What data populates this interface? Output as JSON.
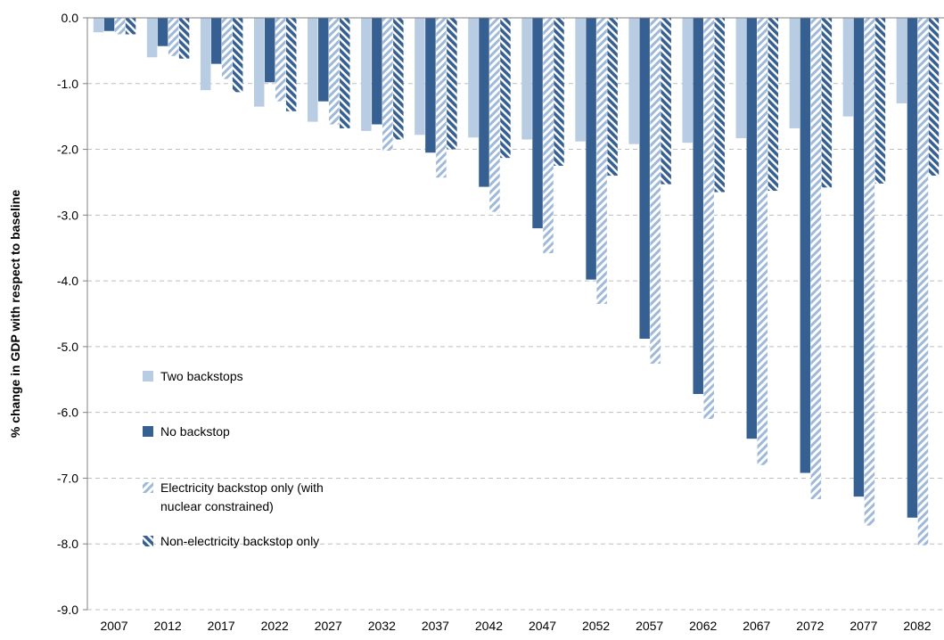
{
  "chart_data": {
    "type": "bar",
    "title": "",
    "xlabel": "",
    "ylabel": "% change in GDP with respect to baseline",
    "ylim": [
      -9.0,
      0.0
    ],
    "yticks": [
      "0.0",
      "-1.0",
      "-2.0",
      "-3.0",
      "-4.0",
      "-5.0",
      "-6.0",
      "-7.0",
      "-8.0",
      "-9.0"
    ],
    "grid": "horizontal dashed",
    "legend_position": "inside-left",
    "categories": [
      "2007",
      "2012",
      "2017",
      "2022",
      "2027",
      "2032",
      "2037",
      "2042",
      "2047",
      "2052",
      "2057",
      "2062",
      "2067",
      "2072",
      "2077",
      "2082"
    ],
    "series": [
      {
        "name": "Two backstops",
        "color": "#b8cce4",
        "pattern": "solid",
        "values": [
          -0.22,
          -0.6,
          -1.1,
          -1.35,
          -1.58,
          -1.72,
          -1.78,
          -1.82,
          -1.85,
          -1.88,
          -1.92,
          -1.9,
          -1.83,
          -1.68,
          -1.5,
          -1.3
        ]
      },
      {
        "name": "No backstop",
        "color": "#376092",
        "pattern": "solid",
        "values": [
          -0.2,
          -0.43,
          -0.7,
          -0.98,
          -1.27,
          -1.62,
          -2.05,
          -2.57,
          -3.2,
          -3.98,
          -4.88,
          -5.72,
          -6.4,
          -6.92,
          -7.28,
          -7.6
        ]
      },
      {
        "name": "Electricity backstop only (with nuclear constrained)",
        "color": "#b8cce4",
        "pattern": "diagonal",
        "values": [
          -0.25,
          -0.58,
          -0.93,
          -1.27,
          -1.62,
          -2.02,
          -2.43,
          -2.95,
          -3.58,
          -4.35,
          -5.26,
          -6.1,
          -6.8,
          -7.32,
          -7.72,
          -8.02
        ]
      },
      {
        "name": "Non-electricity backstop only",
        "color": "#376092",
        "pattern": "diagonal",
        "values": [
          -0.25,
          -0.62,
          -1.13,
          -1.42,
          -1.68,
          -1.85,
          -2.0,
          -2.13,
          -2.25,
          -2.4,
          -2.53,
          -2.65,
          -2.63,
          -2.58,
          -2.52,
          -2.4
        ]
      }
    ],
    "legend_lines": [
      [
        "Two backstops"
      ],
      [
        "No backstop"
      ],
      [
        "Electricity backstop only (with",
        "nuclear constrained)"
      ],
      [
        "Non-electricity backstop only"
      ]
    ]
  }
}
